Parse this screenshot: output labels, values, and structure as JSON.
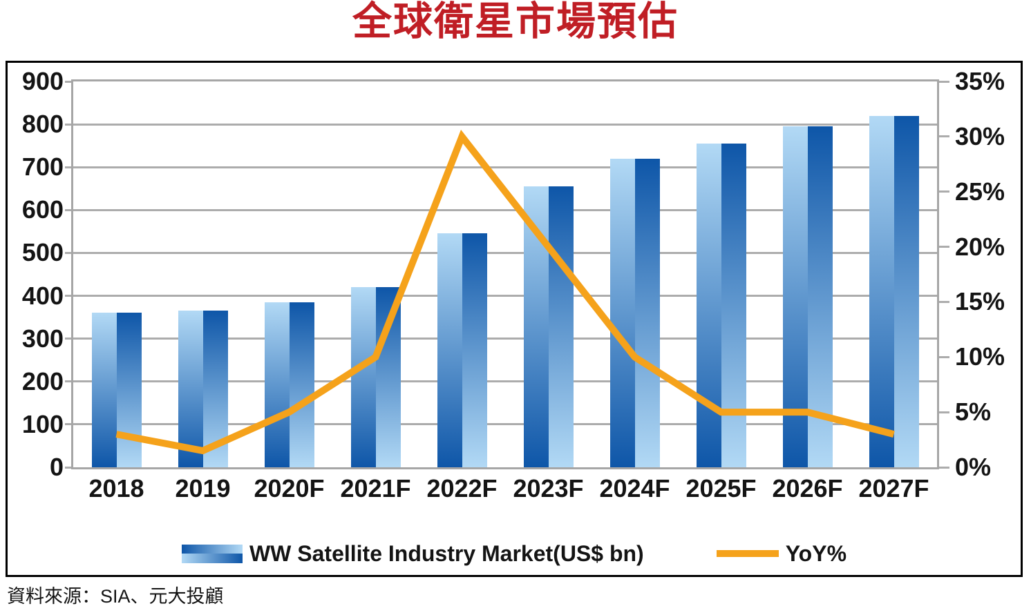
{
  "title": "全球衛星市場預估",
  "source": "資料來源：SIA、元大投顧",
  "colors": {
    "title_red": "#C01E25",
    "bar_light": "#B2D9F5",
    "bar_dark": "#0E56A8",
    "line_orange": "#F5A21B",
    "grid_gray": "#ACACAC",
    "frame_gray": "#A6A6A6",
    "border_black": "#000000",
    "text_black": "#141414"
  },
  "legend": [
    {
      "label": "WW Satellite Industry Market(US$ bn)",
      "swatch": "bar-gradient"
    },
    {
      "label": "YoY%",
      "swatch": "orange-line"
    }
  ],
  "chart_data": {
    "type": "bar+line",
    "title": "全球衛星市場預估",
    "categories": [
      "2018",
      "2019",
      "2020F",
      "2021F",
      "2022F",
      "2023F",
      "2024F",
      "2025F",
      "2026F",
      "2027F"
    ],
    "series": [
      {
        "name": "WW Satellite Industry Market(US$ bn)",
        "type": "bar",
        "axis": "left",
        "values": [
          360,
          365,
          385,
          420,
          545,
          655,
          720,
          755,
          795,
          820
        ]
      },
      {
        "name": "YoY%",
        "type": "line",
        "axis": "right",
        "values_percent": [
          3,
          1.5,
          5,
          10,
          30,
          20,
          10,
          5,
          5,
          3
        ]
      }
    ],
    "left_axis": {
      "min": 0,
      "max": 900,
      "step": 100,
      "ticks": [
        "0",
        "100",
        "200",
        "300",
        "400",
        "500",
        "600",
        "700",
        "800",
        "900"
      ]
    },
    "right_axis": {
      "min": 0,
      "max": 35,
      "step": 5,
      "ticks": [
        "0%",
        "5%",
        "10%",
        "15%",
        "20%",
        "25%",
        "30%",
        "35%"
      ]
    },
    "grid": "horizontal gridlines from left axis",
    "legend_position": "bottom"
  }
}
